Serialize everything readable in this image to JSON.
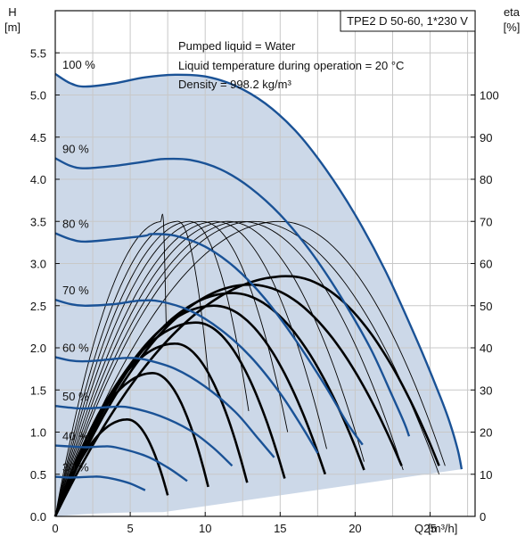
{
  "chart_data": {
    "type": "line",
    "title": "TPE2 D 50-60, 1*230 V",
    "annotations": [
      "Pumped liquid = Water",
      "Liquid temperature during operation = 20 °C",
      "Density = 998.2 kg/m³"
    ],
    "y_axis": {
      "label": "H",
      "unit": "[m]",
      "lim": [
        0,
        6.0
      ],
      "ticks": [
        "0.0",
        "0.5",
        "1.0",
        "1.5",
        "2.0",
        "2.5",
        "3.0",
        "3.5",
        "4.0",
        "4.5",
        "5.0",
        "5.5"
      ]
    },
    "y2_axis": {
      "label": "eta",
      "unit": "[%]",
      "lim": [
        0,
        120
      ],
      "ticks": [
        "0",
        "10",
        "20",
        "30",
        "40",
        "50",
        "60",
        "70",
        "80",
        "90",
        "100"
      ]
    },
    "x_axis": {
      "label": "Q",
      "unit": "[m³/h]",
      "lim": [
        0,
        28
      ],
      "ticks": [
        "0",
        "5",
        "10",
        "15",
        "20",
        "25"
      ]
    },
    "grid": true,
    "colors": {
      "speed_curve": "#1a5296",
      "envelope": "#ccd8e8",
      "eta_curve": "#000000",
      "grid": "#c8c8c8"
    },
    "speed_curves": [
      {
        "label": "100 %",
        "points": [
          [
            0,
            5.25
          ],
          [
            1,
            5.14
          ],
          [
            2,
            5.1
          ],
          [
            4,
            5.14
          ],
          [
            6,
            5.21
          ],
          [
            8,
            5.24
          ],
          [
            10,
            5.22
          ],
          [
            12,
            5.11
          ],
          [
            14,
            4.9
          ],
          [
            16,
            4.58
          ],
          [
            18,
            4.13
          ],
          [
            20,
            3.58
          ],
          [
            22,
            2.92
          ],
          [
            24,
            2.14
          ],
          [
            25.5,
            1.5
          ],
          [
            26.3,
            1.12
          ],
          [
            26.8,
            0.82
          ],
          [
            27.0,
            0.66
          ],
          [
            27.1,
            0.56
          ]
        ]
      },
      {
        "label": "90 %",
        "points": [
          [
            0,
            4.25
          ],
          [
            1,
            4.16
          ],
          [
            2,
            4.13
          ],
          [
            4,
            4.16
          ],
          [
            6,
            4.21
          ],
          [
            7.2,
            4.24
          ],
          [
            9,
            4.23
          ],
          [
            11,
            4.12
          ],
          [
            13,
            3.9
          ],
          [
            15,
            3.58
          ],
          [
            17,
            3.15
          ],
          [
            19,
            2.62
          ],
          [
            21,
            2.0
          ],
          [
            22.5,
            1.42
          ],
          [
            23.3,
            1.1
          ],
          [
            23.6,
            0.95
          ]
        ]
      },
      {
        "label": "80 %",
        "points": [
          [
            0,
            3.36
          ],
          [
            1,
            3.29
          ],
          [
            2,
            3.26
          ],
          [
            4,
            3.29
          ],
          [
            6,
            3.33
          ],
          [
            6.4,
            3.35
          ],
          [
            8,
            3.33
          ],
          [
            10,
            3.2
          ],
          [
            12,
            2.95
          ],
          [
            14,
            2.58
          ],
          [
            16,
            2.1
          ],
          [
            18,
            1.55
          ],
          [
            19.5,
            1.1
          ],
          [
            20.5,
            0.85
          ]
        ]
      },
      {
        "label": "70 %",
        "points": [
          [
            0,
            2.57
          ],
          [
            1,
            2.52
          ],
          [
            2,
            2.5
          ],
          [
            4,
            2.52
          ],
          [
            5.6,
            2.56
          ],
          [
            7,
            2.55
          ],
          [
            9,
            2.44
          ],
          [
            11,
            2.22
          ],
          [
            13,
            1.9
          ],
          [
            15,
            1.46
          ],
          [
            16.5,
            1.05
          ],
          [
            17.5,
            0.75
          ]
        ]
      },
      {
        "label": "60 %",
        "points": [
          [
            0,
            1.89
          ],
          [
            1,
            1.85
          ],
          [
            2,
            1.84
          ],
          [
            3.5,
            1.86
          ],
          [
            4.8,
            1.88
          ],
          [
            6,
            1.86
          ],
          [
            8,
            1.75
          ],
          [
            10,
            1.54
          ],
          [
            12,
            1.24
          ],
          [
            13.5,
            0.93
          ],
          [
            14.6,
            0.7
          ]
        ]
      },
      {
        "label": "50 %",
        "points": [
          [
            0,
            1.31
          ],
          [
            1,
            1.29
          ],
          [
            2,
            1.28
          ],
          [
            4,
            1.3
          ],
          [
            5,
            1.29
          ],
          [
            7,
            1.19
          ],
          [
            9,
            1.02
          ],
          [
            10.5,
            0.82
          ],
          [
            11.8,
            0.6
          ]
        ]
      },
      {
        "label": "40 %",
        "points": [
          [
            0,
            0.84
          ],
          [
            1,
            0.83
          ],
          [
            2,
            0.82
          ],
          [
            3.2,
            0.83
          ],
          [
            4,
            0.82
          ],
          [
            6,
            0.72
          ],
          [
            7.5,
            0.58
          ],
          [
            8.8,
            0.42
          ]
        ]
      },
      {
        "label": "30 %",
        "points": [
          [
            0,
            0.47
          ],
          [
            1,
            0.46
          ],
          [
            2.4,
            0.47
          ],
          [
            3,
            0.47
          ],
          [
            4,
            0.44
          ],
          [
            5,
            0.39
          ],
          [
            6,
            0.31
          ]
        ]
      }
    ],
    "eta_curves": [
      {
        "peak_q": 7.2,
        "peak_eta": 70,
        "end_q": 7.4,
        "end_eta": 45
      },
      {
        "peak_q": 8.2,
        "peak_eta": 70,
        "end_q": 10.3,
        "end_eta": 30
      },
      {
        "peak_q": 9.0,
        "peak_eta": 70,
        "end_q": 12.9,
        "end_eta": 25
      },
      {
        "peak_q": 9.8,
        "peak_eta": 70,
        "end_q": 15.5,
        "end_eta": 20
      },
      {
        "peak_q": 10.7,
        "peak_eta": 70,
        "end_q": 18.1,
        "end_eta": 16
      },
      {
        "peak_q": 11.5,
        "peak_eta": 70,
        "end_q": 20.6,
        "end_eta": 13
      },
      {
        "peak_q": 12.4,
        "peak_eta": 70,
        "end_q": 23.2,
        "end_eta": 11
      },
      {
        "peak_q": 13.2,
        "peak_eta": 70,
        "end_q": 25.6,
        "end_eta": 10
      },
      {
        "peak_q": 15.0,
        "peak_eta": 70,
        "end_q": 26.0,
        "end_eta": 12
      }
    ],
    "bold_eta_curves": [
      {
        "peak_q": 4.8,
        "peak_eta": 23,
        "end_q": 7.5,
        "end_eta": 5
      },
      {
        "peak_q": 6.5,
        "peak_eta": 34,
        "end_q": 10.2,
        "end_eta": 7
      },
      {
        "peak_q": 8.0,
        "peak_eta": 41,
        "end_q": 12.8,
        "end_eta": 8
      },
      {
        "peak_q": 9.4,
        "peak_eta": 46,
        "end_q": 15.3,
        "end_eta": 9
      },
      {
        "peak_q": 10.6,
        "peak_eta": 50,
        "end_q": 18.0,
        "end_eta": 10
      },
      {
        "peak_q": 11.8,
        "peak_eta": 53,
        "end_q": 20.6,
        "end_eta": 11
      },
      {
        "peak_q": 13.0,
        "peak_eta": 55,
        "end_q": 23.1,
        "end_eta": 12
      },
      {
        "peak_q": 15.5,
        "peak_eta": 57,
        "end_q": 25.6,
        "end_eta": 12
      }
    ]
  }
}
